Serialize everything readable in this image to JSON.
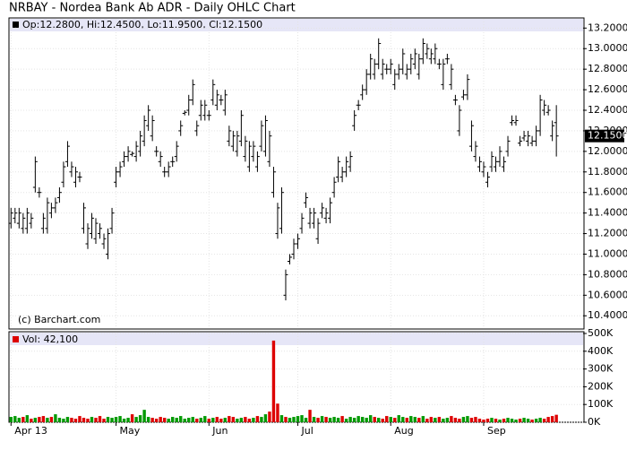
{
  "chart_data": {
    "type": "ohlc",
    "title": "NRBAY - Nordea Bank Ab ADR - Daily OHLC Chart",
    "header_text": "Op:12.2800, Hi:12.4500, Lo:11.9500, Cl:12.1500",
    "credit": "(c) Barchart.com",
    "categories": [
      "Apr 13",
      null,
      null,
      null,
      null,
      null,
      null,
      null,
      null,
      null,
      null,
      null,
      null,
      null,
      null,
      null,
      null,
      null,
      null,
      null,
      null,
      null,
      null,
      null,
      null,
      null,
      "May",
      null,
      null,
      null,
      null,
      null,
      null,
      null,
      null,
      null,
      null,
      null,
      null,
      null,
      null,
      null,
      null,
      null,
      null,
      null,
      null,
      null,
      null,
      "Jun",
      null,
      null,
      null,
      null,
      null,
      null,
      null,
      null,
      null,
      null,
      null,
      null,
      null,
      null,
      null,
      null,
      null,
      null,
      null,
      null,
      null,
      "Jul",
      null,
      null,
      null,
      null,
      null,
      null,
      null,
      null,
      null,
      null,
      null,
      null,
      null,
      null,
      null,
      null,
      null,
      null,
      null,
      null,
      null,
      null,
      "Aug",
      null,
      null,
      null,
      null,
      null,
      null,
      null,
      null,
      null,
      null,
      null,
      null,
      null,
      null,
      null,
      null,
      null,
      null,
      null,
      null,
      null,
      null,
      "Sep",
      null,
      null,
      null,
      null,
      null,
      null,
      null,
      null,
      null,
      null,
      null,
      null,
      null,
      null,
      null,
      null,
      null,
      null
    ],
    "open": [
      11.3,
      11.35,
      11.3,
      11.25,
      11.25,
      11.3,
      11.65,
      11.6,
      11.25,
      11.25,
      11.4,
      11.45,
      11.55,
      11.7,
      11.9,
      11.8,
      11.7,
      11.75,
      11.25,
      11.1,
      11.2,
      11.15,
      11.2,
      11.1,
      11.0,
      11.25,
      11.7,
      11.8,
      11.9,
      11.95,
      11.97,
      11.95,
      12.0,
      12.1,
      12.25,
      12.15,
      12.0,
      11.9,
      11.8,
      11.8,
      11.9,
      11.95,
      12.2,
      12.37,
      12.4,
      12.5,
      12.2,
      12.35,
      12.35,
      12.35,
      12.5,
      12.45,
      12.5,
      12.4,
      12.1,
      12.05,
      12.0,
      12.1,
      11.95,
      11.85,
      11.95,
      11.85,
      12.05,
      12.0,
      11.9,
      11.6,
      11.2,
      11.25,
      10.6,
      10.93,
      11.0,
      11.1,
      11.25,
      11.5,
      11.3,
      11.3,
      11.15,
      11.4,
      11.35,
      11.35,
      11.6,
      11.75,
      11.75,
      11.8,
      11.85,
      12.25,
      12.45,
      12.55,
      12.6,
      12.75,
      12.75,
      12.85,
      12.75,
      12.8,
      12.8,
      12.65,
      12.75,
      12.8,
      12.75,
      12.8,
      12.85,
      12.75,
      12.9,
      12.95,
      12.9,
      12.9,
      12.85,
      12.65,
      12.9,
      12.65,
      12.5,
      12.2,
      12.53,
      12.55,
      12.05,
      11.95,
      11.85,
      11.8,
      11.7,
      11.85,
      11.85,
      11.9,
      11.85,
      12.0,
      12.28,
      12.28,
      12.08,
      12.13,
      12.1,
      12.08,
      12.1,
      12.2,
      12.4,
      12.38,
      12.15,
      12.28
    ],
    "high": [
      11.45,
      11.45,
      11.45,
      11.4,
      11.45,
      11.4,
      11.95,
      11.65,
      11.4,
      11.55,
      11.5,
      11.55,
      11.65,
      11.9,
      12.1,
      11.9,
      11.85,
      11.8,
      11.5,
      11.3,
      11.4,
      11.35,
      11.3,
      11.2,
      11.25,
      11.45,
      11.85,
      11.9,
      12.0,
      12.05,
      12.0,
      12.1,
      12.2,
      12.35,
      12.45,
      12.35,
      12.05,
      12.0,
      11.85,
      11.9,
      11.95,
      12.1,
      12.3,
      12.4,
      12.55,
      12.7,
      12.3,
      12.5,
      12.5,
      12.4,
      12.7,
      12.6,
      12.55,
      12.6,
      12.25,
      12.2,
      12.2,
      12.4,
      12.15,
      12.1,
      12.1,
      12.0,
      12.3,
      12.35,
      12.2,
      11.85,
      11.5,
      11.65,
      10.85,
      11.0,
      11.15,
      11.2,
      11.4,
      11.6,
      11.45,
      11.45,
      11.35,
      11.5,
      11.45,
      11.55,
      11.75,
      11.95,
      11.85,
      11.95,
      12.0,
      12.4,
      12.5,
      12.65,
      12.8,
      12.95,
      12.9,
      13.1,
      12.9,
      12.85,
      12.9,
      12.8,
      12.85,
      13.0,
      12.85,
      12.95,
      13.0,
      12.95,
      13.1,
      13.05,
      13.0,
      13.05,
      12.9,
      12.9,
      12.95,
      12.85,
      12.55,
      12.45,
      12.6,
      12.75,
      12.3,
      12.1,
      11.95,
      11.9,
      11.8,
      12.0,
      11.95,
      12.05,
      11.95,
      12.15,
      12.35,
      12.35,
      12.15,
      12.2,
      12.2,
      12.15,
      12.25,
      12.55,
      12.5,
      12.45,
      12.3,
      12.45
    ],
    "low": [
      11.25,
      11.3,
      11.25,
      11.2,
      11.2,
      11.25,
      11.6,
      11.55,
      11.2,
      11.2,
      11.35,
      11.4,
      11.5,
      11.65,
      11.85,
      11.75,
      11.65,
      11.7,
      11.2,
      11.05,
      11.15,
      11.1,
      11.15,
      11.05,
      10.95,
      11.2,
      11.65,
      11.75,
      11.85,
      11.9,
      11.95,
      11.9,
      11.95,
      12.05,
      12.2,
      12.1,
      11.95,
      11.85,
      11.75,
      11.75,
      11.85,
      11.9,
      12.15,
      12.35,
      12.35,
      12.45,
      12.15,
      12.3,
      12.3,
      12.3,
      12.45,
      12.4,
      12.45,
      12.35,
      12.05,
      12.0,
      11.95,
      12.05,
      11.9,
      11.8,
      11.9,
      11.8,
      12.0,
      11.95,
      11.85,
      11.55,
      11.15,
      11.2,
      10.55,
      10.9,
      10.95,
      11.05,
      11.2,
      11.45,
      11.25,
      11.25,
      11.1,
      11.35,
      11.3,
      11.3,
      11.55,
      11.7,
      11.7,
      11.75,
      11.8,
      12.2,
      12.4,
      12.5,
      12.55,
      12.7,
      12.7,
      12.8,
      12.7,
      12.75,
      12.75,
      12.6,
      12.7,
      12.75,
      12.7,
      12.75,
      12.8,
      12.7,
      12.85,
      12.9,
      12.85,
      12.85,
      12.8,
      12.6,
      12.85,
      12.6,
      12.45,
      12.15,
      12.5,
      12.5,
      12.0,
      11.9,
      11.8,
      11.75,
      11.65,
      11.8,
      11.8,
      11.85,
      11.8,
      11.95,
      12.25,
      12.25,
      12.05,
      12.1,
      12.05,
      12.05,
      12.05,
      12.15,
      12.35,
      12.35,
      12.1,
      11.95
    ],
    "close": [
      11.4,
      11.4,
      11.4,
      11.35,
      11.4,
      11.35,
      11.9,
      11.6,
      11.35,
      11.5,
      11.45,
      11.5,
      11.6,
      11.85,
      12.05,
      11.85,
      11.8,
      11.75,
      11.45,
      11.25,
      11.35,
      11.3,
      11.25,
      11.15,
      11.2,
      11.4,
      11.8,
      11.85,
      11.95,
      12.0,
      11.98,
      12.05,
      12.15,
      12.3,
      12.4,
      12.3,
      12.0,
      11.95,
      11.8,
      11.85,
      11.9,
      12.05,
      12.25,
      12.38,
      12.5,
      12.65,
      12.25,
      12.45,
      12.45,
      12.35,
      12.65,
      12.55,
      12.5,
      12.55,
      12.2,
      12.15,
      12.15,
      12.35,
      12.1,
      12.05,
      12.05,
      11.95,
      12.25,
      12.3,
      12.15,
      11.8,
      11.45,
      11.6,
      10.8,
      10.97,
      11.1,
      11.15,
      11.35,
      11.55,
      11.4,
      11.4,
      11.3,
      11.45,
      11.4,
      11.5,
      11.7,
      11.9,
      11.8,
      11.9,
      11.95,
      12.35,
      12.45,
      12.6,
      12.75,
      12.9,
      12.85,
      13.05,
      12.85,
      12.8,
      12.85,
      12.75,
      12.8,
      12.95,
      12.8,
      12.9,
      12.95,
      12.9,
      13.05,
      13.0,
      12.95,
      13.0,
      12.85,
      12.85,
      12.9,
      12.8,
      12.5,
      12.4,
      12.55,
      12.7,
      12.25,
      12.05,
      11.9,
      11.85,
      11.75,
      11.95,
      11.9,
      12.0,
      11.9,
      12.1,
      12.3,
      12.3,
      12.1,
      12.15,
      12.15,
      12.1,
      12.2,
      12.5,
      12.45,
      12.4,
      12.25,
      12.15
    ],
    "color": "#000000",
    "ylim": [
      10.28,
      13.29
    ],
    "yticks": [
      {
        "value": 13.2,
        "label": "13.2000"
      },
      {
        "value": 13.0,
        "label": "13.0000"
      },
      {
        "value": 12.8,
        "label": "12.8000"
      },
      {
        "value": 12.6,
        "label": "12.6000"
      },
      {
        "value": 12.4,
        "label": "12.4000"
      },
      {
        "value": 12.2,
        "label": "12.2000"
      },
      {
        "value": 12.0,
        "label": "12.0000"
      },
      {
        "value": 11.8,
        "label": "11.8000"
      },
      {
        "value": 11.6,
        "label": "11.6000"
      },
      {
        "value": 11.4,
        "label": "11.4000"
      },
      {
        "value": 11.2,
        "label": "11.2000"
      },
      {
        "value": 11.0,
        "label": "11.0000"
      },
      {
        "value": 10.8,
        "label": "10.8000"
      },
      {
        "value": 10.6,
        "label": "10.6000"
      },
      {
        "value": 10.4,
        "label": "10.4000"
      }
    ],
    "last_price": {
      "value": 12.15,
      "label": "12.1500"
    },
    "grid": true,
    "volume": {
      "header_text": "Vol: 42,100",
      "values": [
        30000,
        35000,
        25000,
        30000,
        40000,
        20000,
        25000,
        30000,
        35000,
        25000,
        30000,
        45000,
        25000,
        20000,
        30000,
        25000,
        20000,
        35000,
        25000,
        20000,
        30000,
        25000,
        35000,
        20000,
        30000,
        25000,
        30000,
        35000,
        20000,
        25000,
        45000,
        30000,
        40000,
        70000,
        30000,
        25000,
        20000,
        30000,
        25000,
        20000,
        30000,
        25000,
        35000,
        20000,
        25000,
        30000,
        20000,
        25000,
        35000,
        20000,
        25000,
        30000,
        20000,
        25000,
        35000,
        30000,
        20000,
        25000,
        30000,
        20000,
        25000,
        35000,
        30000,
        45000,
        60000,
        460000,
        105000,
        40000,
        30000,
        25000,
        30000,
        35000,
        40000,
        25000,
        70000,
        30000,
        25000,
        35000,
        30000,
        25000,
        30000,
        25000,
        35000,
        20000,
        30000,
        25000,
        35000,
        30000,
        25000,
        40000,
        30000,
        25000,
        20000,
        35000,
        30000,
        25000,
        40000,
        30000,
        25000,
        35000,
        30000,
        25000,
        35000,
        20000,
        30000,
        25000,
        30000,
        20000,
        25000,
        35000,
        25000,
        20000,
        30000,
        35000,
        25000,
        30000,
        20000,
        15000,
        20000,
        25000,
        20000,
        15000,
        20000,
        25000,
        20000,
        15000,
        20000,
        25000,
        20000,
        15000,
        20000,
        25000,
        20000,
        30000,
        35000,
        42100
      ],
      "up_color": "#009900",
      "down_color": "#dd0000",
      "ylim": [
        0,
        500000
      ],
      "yticks": [
        {
          "value": 500000,
          "label": "500K"
        },
        {
          "value": 400000,
          "label": "400K"
        },
        {
          "value": 300000,
          "label": "300K"
        },
        {
          "value": 200000,
          "label": "200K"
        },
        {
          "value": 100000,
          "label": "100K"
        },
        {
          "value": 0,
          "label": "0K"
        }
      ]
    }
  }
}
